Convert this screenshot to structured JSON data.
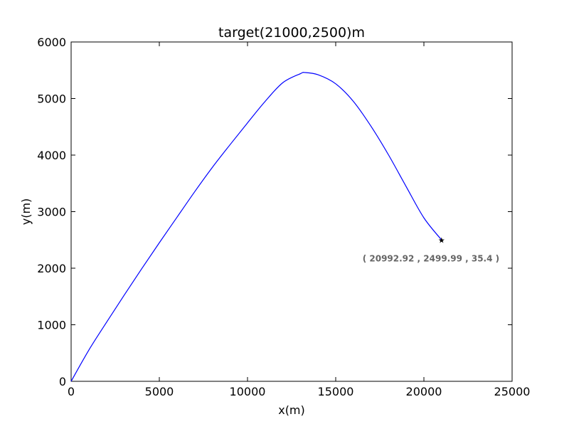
{
  "chart_data": {
    "type": "line",
    "title": "target(21000,2500)m",
    "xlabel": "x(m)",
    "ylabel": "y(m)",
    "xlim": [
      0,
      25000
    ],
    "ylim": [
      0,
      6000
    ],
    "xticks": [
      0,
      5000,
      10000,
      15000,
      20000,
      25000
    ],
    "xtick_labels": [
      "0",
      "5000",
      "10000",
      "15000",
      "20000",
      "25000"
    ],
    "yticks": [
      0,
      1000,
      2000,
      3000,
      4000,
      5000,
      6000
    ],
    "ytick_labels": [
      "0",
      "1000",
      "2000",
      "3000",
      "4000",
      "5000",
      "6000"
    ],
    "grid": false,
    "series": [
      {
        "color": "#0000ff",
        "x": [
          0,
          1000,
          2000,
          3000,
          4000,
          5000,
          6000,
          7000,
          8000,
          9000,
          10000,
          11000,
          12000,
          13000,
          13250,
          14000,
          15000,
          16000,
          17000,
          18000,
          19000,
          20000,
          21000
        ],
        "y": [
          0,
          550,
          1040,
          1520,
          1990,
          2450,
          2900,
          3350,
          3780,
          4180,
          4570,
          4950,
          5280,
          5440,
          5460,
          5420,
          5260,
          4950,
          4510,
          4000,
          3440,
          2890,
          2500
        ]
      }
    ],
    "marker": {
      "x": 21000,
      "y": 2500,
      "symbol": "★",
      "color": "#000000"
    },
    "annotation": {
      "text": "( 20992.92 , 2499.99 , 35.4 )",
      "x": 20400,
      "y": 2120,
      "color": "#666666"
    }
  }
}
